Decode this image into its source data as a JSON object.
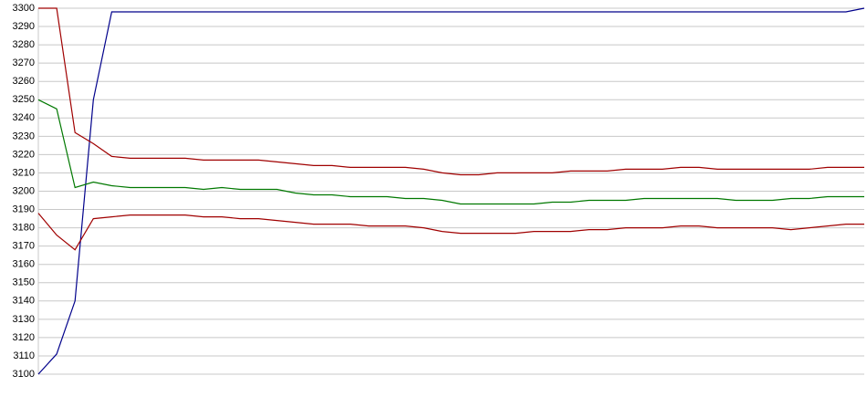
{
  "chart_data": {
    "type": "line",
    "ylim": [
      3100,
      3300
    ],
    "yticks": [
      3100,
      3110,
      3120,
      3130,
      3140,
      3150,
      3160,
      3170,
      3180,
      3190,
      3200,
      3210,
      3220,
      3230,
      3240,
      3250,
      3260,
      3270,
      3280,
      3290,
      3300
    ],
    "grid": true,
    "series": [
      {
        "color": "#00008b",
        "values": [
          3100,
          3111,
          3140,
          3250,
          3298,
          3298,
          3298,
          3298,
          3298,
          3298,
          3298,
          3298,
          3298,
          3298,
          3298,
          3298,
          3298,
          3298,
          3298,
          3298,
          3298,
          3298,
          3298,
          3298,
          3298,
          3298,
          3298,
          3298,
          3298,
          3298,
          3298,
          3298,
          3298,
          3298,
          3298,
          3298,
          3298,
          3298,
          3298,
          3298,
          3298,
          3298,
          3298,
          3298,
          3298,
          3300
        ]
      },
      {
        "color": "#a00000",
        "values": [
          3300,
          3300,
          3232,
          3226,
          3219,
          3218,
          3218,
          3218,
          3218,
          3217,
          3217,
          3217,
          3217,
          3216,
          3215,
          3214,
          3214,
          3213,
          3213,
          3213,
          3213,
          3212,
          3210,
          3209,
          3209,
          3210,
          3210,
          3210,
          3210,
          3211,
          3211,
          3211,
          3212,
          3212,
          3212,
          3213,
          3213,
          3212,
          3212,
          3212,
          3212,
          3212,
          3212,
          3213,
          3213,
          3213
        ]
      },
      {
        "color": "#007800",
        "values": [
          3250,
          3245,
          3202,
          3205,
          3203,
          3202,
          3202,
          3202,
          3202,
          3201,
          3202,
          3201,
          3201,
          3201,
          3199,
          3198,
          3198,
          3197,
          3197,
          3197,
          3196,
          3196,
          3195,
          3193,
          3193,
          3193,
          3193,
          3193,
          3194,
          3194,
          3195,
          3195,
          3195,
          3196,
          3196,
          3196,
          3196,
          3196,
          3195,
          3195,
          3195,
          3196,
          3196,
          3197,
          3197,
          3197
        ]
      },
      {
        "color": "#a00000",
        "values": [
          3188,
          3176,
          3168,
          3185,
          3186,
          3187,
          3187,
          3187,
          3187,
          3186,
          3186,
          3185,
          3185,
          3184,
          3183,
          3182,
          3182,
          3182,
          3181,
          3181,
          3181,
          3180,
          3178,
          3177,
          3177,
          3177,
          3177,
          3178,
          3178,
          3178,
          3179,
          3179,
          3180,
          3180,
          3180,
          3181,
          3181,
          3180,
          3180,
          3180,
          3180,
          3179,
          3180,
          3181,
          3182,
          3182
        ]
      }
    ]
  }
}
